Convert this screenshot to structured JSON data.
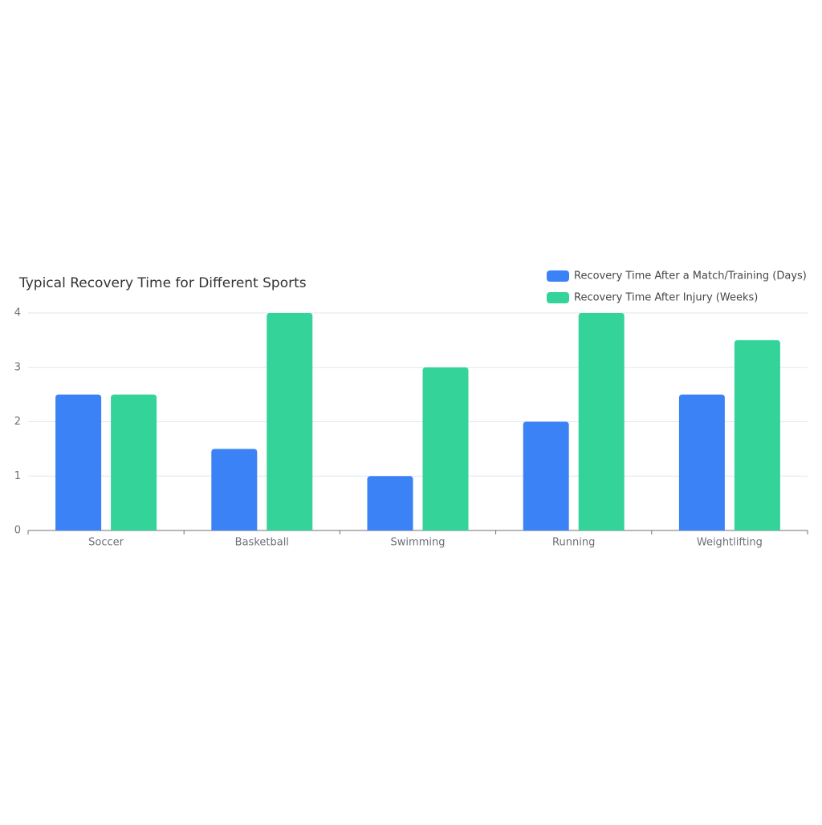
{
  "chart_data": {
    "type": "bar",
    "title": "Typical Recovery Time for Different Sports",
    "categories": [
      "Soccer",
      "Basketball",
      "Swimming",
      "Running",
      "Weightlifting"
    ],
    "series": [
      {
        "name": "Recovery Time After a Match/Training (Days)",
        "color": "#3b82f6",
        "values": [
          2.5,
          1.5,
          1,
          2,
          2.5
        ]
      },
      {
        "name": "Recovery Time After Injury (Weeks)",
        "color": "#34d399",
        "values": [
          2.5,
          4,
          3,
          4,
          3.5
        ]
      }
    ],
    "ylim": [
      0,
      4
    ],
    "yticks": [
      0,
      1,
      2,
      3,
      4
    ],
    "grid": true
  }
}
